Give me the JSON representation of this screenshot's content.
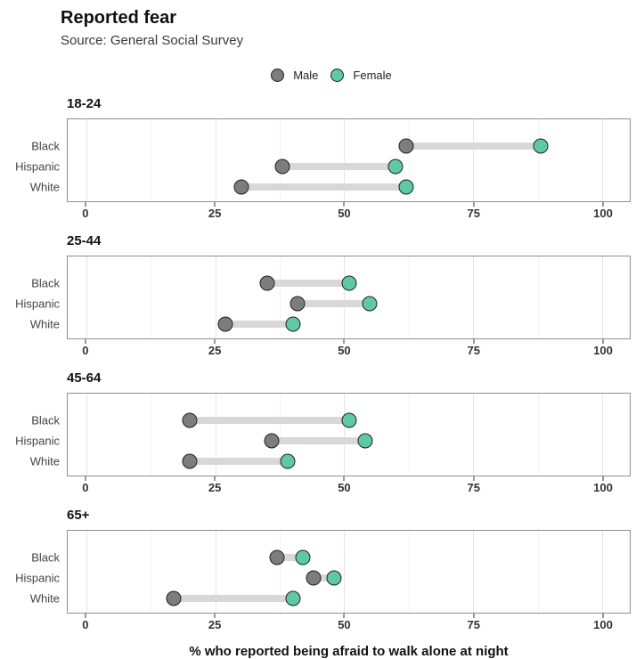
{
  "title": "Reported fear",
  "subtitle": "Source: General Social Survey",
  "chart_data": {
    "type": "dumbbell",
    "title": "Reported fear",
    "subtitle": "Source: General Social Survey",
    "xlabel": "% who reported being afraid to walk alone at night",
    "xlim": [
      0,
      100
    ],
    "xticks": [
      0,
      25,
      50,
      75,
      100
    ],
    "minor_gridlines": [
      12.5,
      37.5,
      62.5,
      87.5
    ],
    "grid": "vertical-only",
    "legend_position": "top-center",
    "legend": [
      {
        "label": "Male",
        "color": "#7d7d7d"
      },
      {
        "label": "Female",
        "color": "#5fc9a4"
      }
    ],
    "categories": [
      "Black",
      "Hispanic",
      "White"
    ],
    "panels": [
      {
        "title": "18-24",
        "series": [
          {
            "name": "Male",
            "values": [
              62,
              38,
              30
            ]
          },
          {
            "name": "Female",
            "values": [
              88,
              60,
              62
            ]
          }
        ]
      },
      {
        "title": "25-44",
        "series": [
          {
            "name": "Male",
            "values": [
              35,
              41,
              27
            ]
          },
          {
            "name": "Female",
            "values": [
              51,
              55,
              40
            ]
          }
        ]
      },
      {
        "title": "45-64",
        "series": [
          {
            "name": "Male",
            "values": [
              20,
              36,
              20
            ]
          },
          {
            "name": "Female",
            "values": [
              51,
              54,
              39
            ]
          }
        ]
      },
      {
        "title": "65+",
        "series": [
          {
            "name": "Male",
            "values": [
              37,
              44,
              17
            ]
          },
          {
            "name": "Female",
            "values": [
              42,
              48,
              40
            ]
          }
        ]
      }
    ],
    "colors": {
      "male_fill": "#7d7d7d",
      "female_fill": "#5fc9a4",
      "dot_border": "#212121",
      "connector": "#d8d8d8"
    }
  }
}
